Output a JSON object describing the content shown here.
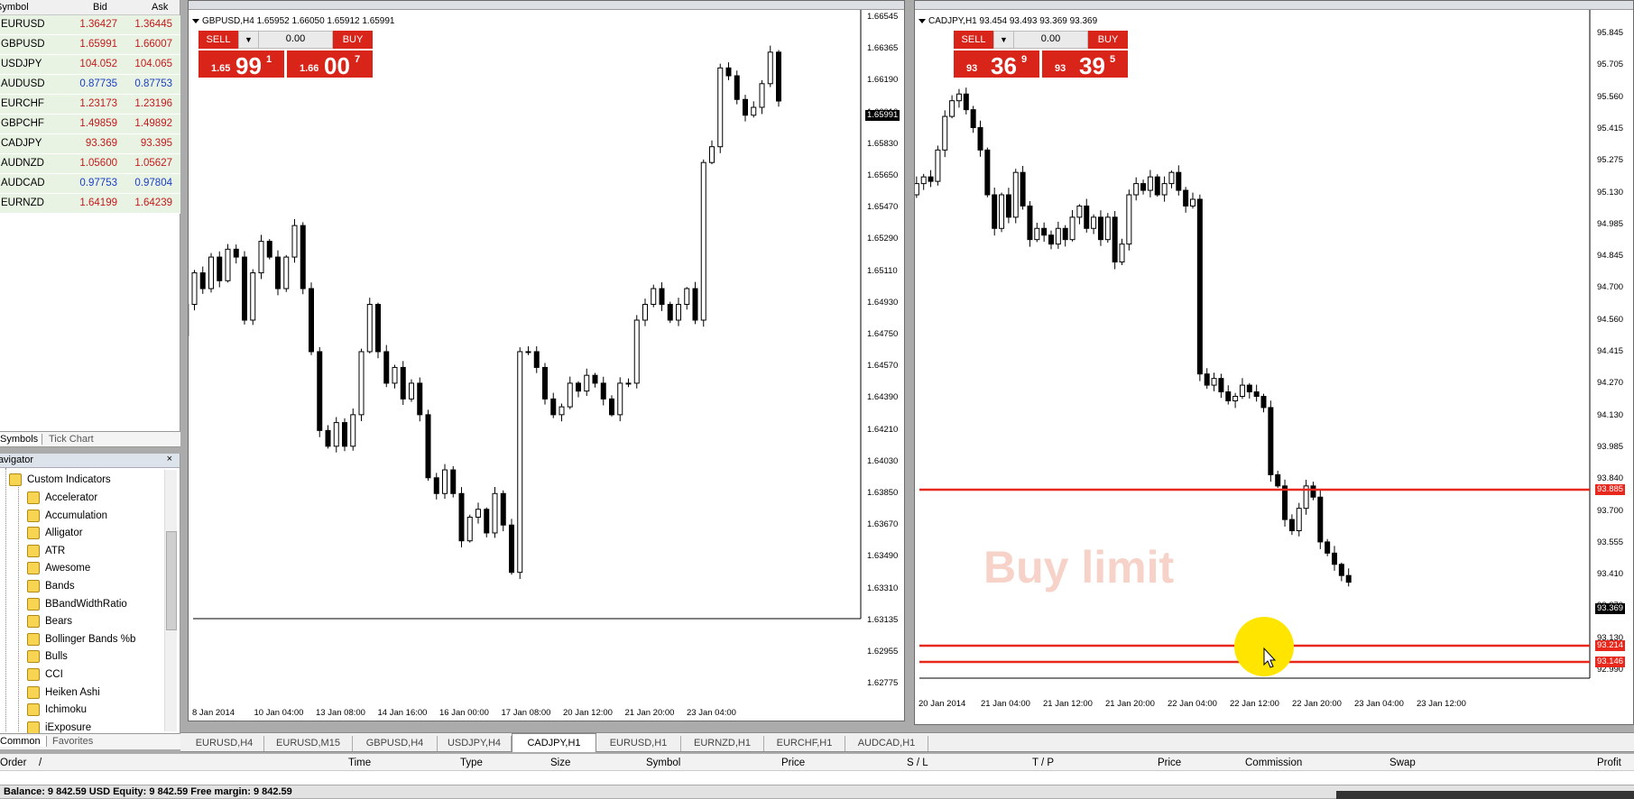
{
  "market_watch": {
    "headers": {
      "symbol": "Symbol",
      "bid": "Bid",
      "ask": "Ask"
    },
    "rows": [
      {
        "symbol": "EURUSD",
        "bid": "1.36427",
        "ask": "1.36445",
        "dir": "up"
      },
      {
        "symbol": "GBPUSD",
        "bid": "1.65991",
        "ask": "1.66007",
        "dir": "up"
      },
      {
        "symbol": "USDJPY",
        "bid": "104.052",
        "ask": "104.065",
        "dir": "up"
      },
      {
        "symbol": "AUDUSD",
        "bid": "0.87735",
        "ask": "0.87753",
        "dir": "dn"
      },
      {
        "symbol": "EURCHF",
        "bid": "1.23173",
        "ask": "1.23196",
        "dir": "up"
      },
      {
        "symbol": "GBPCHF",
        "bid": "1.49859",
        "ask": "1.49892",
        "dir": "up"
      },
      {
        "symbol": "CADJPY",
        "bid": "93.369",
        "ask": "93.395",
        "dir": "up"
      },
      {
        "symbol": "AUDNZD",
        "bid": "1.05600",
        "ask": "1.05627",
        "dir": "up"
      },
      {
        "symbol": "AUDCAD",
        "bid": "0.97753",
        "ask": "0.97804",
        "dir": "dn"
      },
      {
        "symbol": "EURNZD",
        "bid": "1.64199",
        "ask": "1.64239",
        "dir": "up"
      }
    ],
    "tabs": {
      "symbols": "Symbols",
      "tick_chart": "Tick Chart"
    }
  },
  "navigator": {
    "title": "Navigator",
    "close": "×",
    "root": "Custom Indicators",
    "items": [
      "Accelerator",
      "Accumulation",
      "Alligator",
      "ATR",
      "Awesome",
      "Bands",
      "BBandWidthRatio",
      "Bears",
      "Bollinger Bands %b",
      "Bulls",
      "CCI",
      "Heiken Ashi",
      "Ichimoku",
      "iExposure"
    ],
    "tabs": {
      "common": "Common",
      "favorites": "Favorites"
    }
  },
  "charts": [
    {
      "info": "GBPUSD,H4  1.65952 1.66050 1.65912 1.65991",
      "sell_label": "SELL",
      "buy_label": "BUY",
      "lot": "0.00",
      "sell": {
        "small": "1.65",
        "big": "99",
        "tiny": "1"
      },
      "buy": {
        "small": "1.66",
        "big": "00",
        "tiny": "7"
      },
      "price_axis": [
        "1.66545",
        "1.66365",
        "1.66190",
        "1.66010",
        "1.65830",
        "1.65650",
        "1.65470",
        "1.65290",
        "1.65110",
        "1.64930",
        "1.64750",
        "1.64570",
        "1.64390",
        "1.64210",
        "1.64030",
        "1.63850",
        "1.63670",
        "1.63490",
        "1.63310",
        "1.63135",
        "1.62955",
        "1.62775"
      ],
      "current_price": "1.65991",
      "time_axis": [
        "8 Jan 2014",
        "10 Jan 04:00",
        "13 Jan 08:00",
        "14 Jan 16:00",
        "16 Jan 00:00",
        "17 Jan 08:00",
        "20 Jan 12:00",
        "21 Jan 20:00",
        "23 Jan 04:00"
      ]
    },
    {
      "info": "CADJPY,H1  93.454 93.493 93.369 93.369",
      "sell_label": "SELL",
      "buy_label": "BUY",
      "lot": "0.00",
      "sell": {
        "small": "93",
        "big": "36",
        "tiny": "9"
      },
      "buy": {
        "small": "93",
        "big": "39",
        "tiny": "5"
      },
      "price_axis": [
        "95.845",
        "95.705",
        "95.560",
        "95.415",
        "95.275",
        "95.130",
        "94.985",
        "94.845",
        "94.700",
        "94.560",
        "94.415",
        "94.270",
        "94.130",
        "93.985",
        "93.840",
        "93.700",
        "93.555",
        "93.410",
        "93.270",
        "93.130",
        "92.990"
      ],
      "current_price": "93.369",
      "order_lines": [
        "93.885",
        "93.214",
        "93.146"
      ],
      "time_axis": [
        "20 Jan 2014",
        "21 Jan 04:00",
        "21 Jan 12:00",
        "21 Jan 20:00",
        "22 Jan 04:00",
        "22 Jan 12:00",
        "22 Jan 20:00",
        "23 Jan 04:00",
        "23 Jan 12:00"
      ],
      "watermark": "Buy limit"
    }
  ],
  "chart_tabs": [
    "EURUSD,H4",
    "EURUSD,M15",
    "GBPUSD,H4",
    "USDJPY,H4",
    "CADJPY,H1",
    "EURUSD,H1",
    "EURNZD,H1",
    "EURCHF,H1",
    "AUDCAD,H1"
  ],
  "active_tab": "CADJPY,H1",
  "terminal": {
    "columns": [
      "Order",
      "/",
      "Time",
      "Type",
      "Size",
      "Symbol",
      "Price",
      "S / L",
      "T / P",
      "Price",
      "Commission",
      "Swap",
      "Profit"
    ]
  },
  "status": {
    "text": "Balance: 9 842.59 USD  Equity: 9 842.59  Free margin: 9 842.59"
  },
  "colors": {
    "sell_buy": "#d9241a",
    "order_line": "#e8281c",
    "bid_up": "#c41a1a",
    "bid_down": "#1a3ec4"
  }
}
